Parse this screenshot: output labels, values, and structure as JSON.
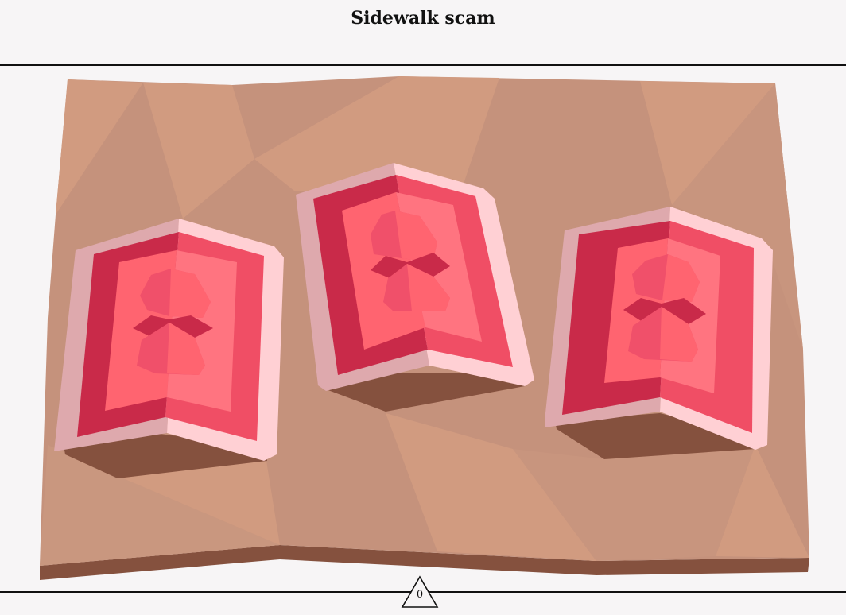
{
  "game": {
    "title": "Sidewalk scam",
    "counter": "0"
  },
  "cups": [
    {
      "name": "cup-left"
    },
    {
      "name": "cup-middle"
    },
    {
      "name": "cup-right"
    }
  ],
  "colors": {
    "background": "#f7f5f6",
    "ground_light": "#d19b80",
    "ground_dark": "#c5927c",
    "ground_side": "#85513e",
    "cup_outer_light": "#ffd0d4",
    "cup_outer_dim": "#dea9ad",
    "cup_inner_dark": "#c92a49",
    "cup_inner_mid": "#f04e65",
    "cup_inner_light": "#ff6470"
  }
}
